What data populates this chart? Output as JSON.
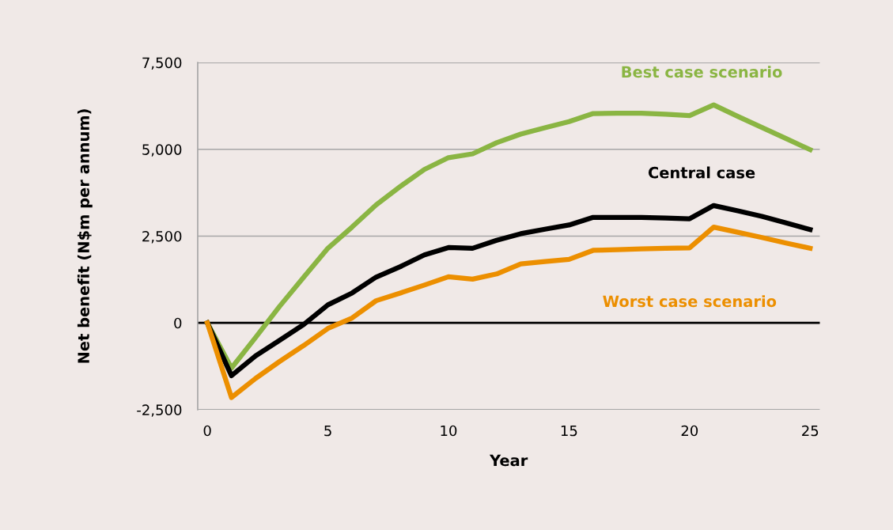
{
  "chart_data": {
    "type": "line",
    "xlabel": "Year",
    "ylabel": "Net benefit (N$m per annum)",
    "x": [
      0,
      1,
      2,
      3,
      4,
      5,
      6,
      7,
      8,
      9,
      10,
      11,
      12,
      13,
      14,
      15,
      16,
      17,
      18,
      19,
      20,
      21,
      22,
      23,
      24,
      25
    ],
    "series": [
      {
        "name": "Best case scenario",
        "color": "#8ab543",
        "values": [
          0,
          -1300,
          -420,
          480,
          1320,
          2150,
          2760,
          3400,
          3930,
          4420,
          4760,
          4870,
          5190,
          5440,
          5620,
          5800,
          6030,
          6040,
          6040,
          6010,
          5970,
          6280,
          5950,
          5630,
          5310,
          4990
        ]
      },
      {
        "name": "Central case",
        "color": "#000000",
        "values": [
          0,
          -1520,
          -950,
          -500,
          -45,
          520,
          860,
          1320,
          1620,
          1960,
          2170,
          2150,
          2380,
          2570,
          2700,
          2820,
          3040,
          3040,
          3040,
          3020,
          3000,
          3380,
          3230,
          3070,
          2880,
          2690
        ]
      },
      {
        "name": "Worst case scenario",
        "color": "#ec8f00",
        "values": [
          0,
          -2150,
          -1600,
          -1110,
          -650,
          -160,
          140,
          640,
          860,
          1090,
          1330,
          1260,
          1410,
          1700,
          1770,
          1830,
          2090,
          2110,
          2130,
          2150,
          2160,
          2760,
          2610,
          2460,
          2300,
          2150
        ]
      }
    ],
    "xlim": [
      -0.4,
      25.4
    ],
    "xticks": [
      0,
      5,
      10,
      15,
      20,
      25
    ],
    "ylim": [
      -2500,
      7500
    ],
    "yticks": [
      {
        "value": -2500,
        "label": "-2,500"
      },
      {
        "value": 0,
        "label": "0"
      },
      {
        "value": 2500,
        "label": "2,500"
      },
      {
        "value": 5000,
        "label": "5,000"
      },
      {
        "value": 7500,
        "label": "7,500"
      }
    ],
    "grid": "y",
    "legend": false,
    "marker": "none",
    "line_style": "solid",
    "ref_lines": [
      {
        "axis": "y",
        "value": 0,
        "color": "#000000"
      }
    ]
  }
}
